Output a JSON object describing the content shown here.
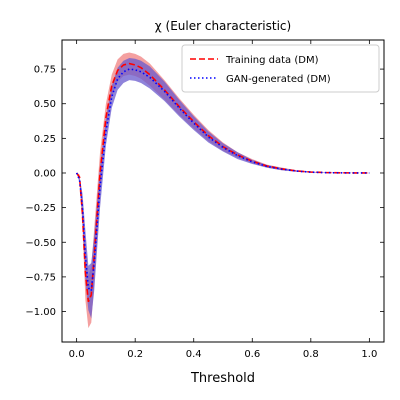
{
  "chart_data": {
    "type": "line",
    "title": "χ (Euler characteristic)",
    "xlabel": "Threshold",
    "ylabel": "",
    "xlim": [
      -0.05,
      1.05
    ],
    "ylim": [
      -1.22,
      0.96
    ],
    "xticks": [
      0.0,
      0.2,
      0.4,
      0.6,
      0.8,
      1.0
    ],
    "xtick_labels": [
      "0.0",
      "0.2",
      "0.4",
      "0.6",
      "0.8",
      "1.0"
    ],
    "yticks": [
      -1.0,
      -0.75,
      -0.5,
      -0.25,
      0.0,
      0.25,
      0.5,
      0.75
    ],
    "ytick_labels": [
      "−1.00",
      "−0.75",
      "−0.50",
      "−0.25",
      "0.00",
      "0.25",
      "0.50",
      "0.75"
    ],
    "grid": false,
    "legend_position": "top-right",
    "series": [
      {
        "name": "Training data (DM)",
        "style": "dashed",
        "color": "#ff0000",
        "band_color": "#f08080",
        "x": [
          0.0,
          0.01,
          0.02,
          0.03,
          0.04,
          0.05,
          0.06,
          0.08,
          0.1,
          0.12,
          0.14,
          0.16,
          0.18,
          0.2,
          0.22,
          0.25,
          0.3,
          0.35,
          0.4,
          0.45,
          0.5,
          0.55,
          0.6,
          0.65,
          0.7,
          0.75,
          0.8,
          0.85,
          0.9,
          0.95,
          1.0
        ],
        "y": [
          0.0,
          -0.03,
          -0.3,
          -0.72,
          -0.93,
          -0.88,
          -0.6,
          0.0,
          0.4,
          0.63,
          0.74,
          0.78,
          0.79,
          0.78,
          0.76,
          0.71,
          0.6,
          0.48,
          0.37,
          0.27,
          0.19,
          0.13,
          0.085,
          0.05,
          0.03,
          0.015,
          0.007,
          0.003,
          0.0015,
          0.0005,
          0.0
        ],
        "lower": [
          0.0,
          -0.05,
          -0.4,
          -0.92,
          -1.12,
          -1.08,
          -0.8,
          -0.15,
          0.3,
          0.55,
          0.66,
          0.7,
          0.71,
          0.7,
          0.68,
          0.63,
          0.53,
          0.42,
          0.32,
          0.23,
          0.16,
          0.11,
          0.07,
          0.04,
          0.02,
          0.01,
          0.004,
          0.002,
          0.0008,
          0.0002,
          0.0
        ],
        "upper": [
          0.0,
          -0.01,
          -0.2,
          -0.52,
          -0.74,
          -0.68,
          -0.4,
          0.15,
          0.5,
          0.71,
          0.82,
          0.86,
          0.87,
          0.86,
          0.84,
          0.79,
          0.67,
          0.54,
          0.42,
          0.31,
          0.22,
          0.15,
          0.1,
          0.06,
          0.04,
          0.02,
          0.01,
          0.005,
          0.002,
          0.0008,
          0.0
        ]
      },
      {
        "name": "GAN-generated (DM)",
        "style": "dotted",
        "color": "#0000ff",
        "band_color": "#6a5acd",
        "x": [
          0.0,
          0.01,
          0.02,
          0.03,
          0.04,
          0.05,
          0.06,
          0.08,
          0.1,
          0.12,
          0.14,
          0.16,
          0.18,
          0.2,
          0.22,
          0.25,
          0.3,
          0.35,
          0.4,
          0.45,
          0.5,
          0.55,
          0.6,
          0.65,
          0.7,
          0.75,
          0.8,
          0.85,
          0.9,
          0.95,
          1.0
        ],
        "y": [
          0.0,
          -0.05,
          -0.25,
          -0.6,
          -0.83,
          -0.85,
          -0.65,
          -0.1,
          0.3,
          0.55,
          0.68,
          0.73,
          0.75,
          0.745,
          0.73,
          0.69,
          0.59,
          0.47,
          0.36,
          0.26,
          0.185,
          0.125,
          0.08,
          0.048,
          0.028,
          0.014,
          0.006,
          0.0025,
          0.001,
          0.0004,
          0.0
        ],
        "lower": [
          0.0,
          -0.07,
          -0.35,
          -0.78,
          -0.99,
          -1.05,
          -0.85,
          -0.25,
          0.2,
          0.47,
          0.6,
          0.65,
          0.67,
          0.665,
          0.65,
          0.61,
          0.52,
          0.41,
          0.31,
          0.22,
          0.155,
          0.1,
          0.065,
          0.038,
          0.02,
          0.009,
          0.004,
          0.0015,
          0.0006,
          0.0002,
          0.0
        ],
        "upper": [
          0.0,
          -0.03,
          -0.15,
          -0.42,
          -0.67,
          -0.65,
          -0.45,
          0.05,
          0.4,
          0.63,
          0.76,
          0.81,
          0.83,
          0.825,
          0.81,
          0.77,
          0.66,
          0.53,
          0.41,
          0.3,
          0.215,
          0.15,
          0.095,
          0.058,
          0.036,
          0.019,
          0.009,
          0.0035,
          0.0015,
          0.0006,
          0.0
        ]
      }
    ]
  }
}
